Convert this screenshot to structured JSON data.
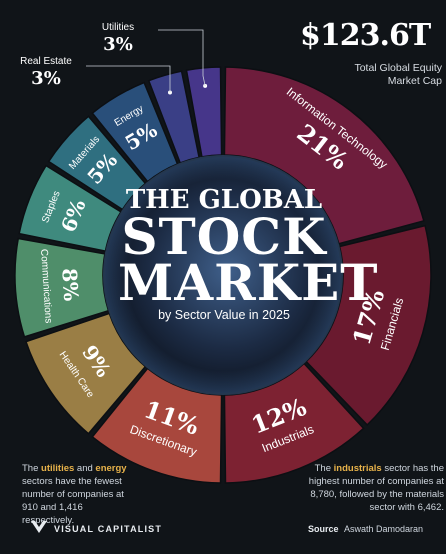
{
  "header": {
    "total_value": "$123.6T",
    "total_label": "Total Global Equity Market Cap"
  },
  "title": {
    "line1": "THE GLOBAL",
    "line2": "STOCK",
    "line3": "MARKET",
    "subtitle": "by Sector Value in 2025"
  },
  "notes": {
    "left_pre": "The ",
    "left_hl1": "utilities",
    "left_mid": " and ",
    "left_hl2": "energy",
    "left_post": " sectors have the fewest number of companies at 910 and 1,416 respectively.",
    "right_pre": "The ",
    "right_hl": "industrials",
    "right_post": " sector has the highest number of companies at 8,780, followed by the materials sector with 6,462."
  },
  "footer": {
    "brand": "VISUAL CAPITALIST",
    "source_label": "Source",
    "source_value": "Aswath Damodaran"
  },
  "colors": {
    "background": "#101418",
    "highlight": "#e7b24a"
  },
  "chart_data": {
    "type": "pie",
    "title": "THE GLOBAL STOCK MARKET by Sector Value in 2025",
    "categories": [
      "Information Technology",
      "Financials",
      "Industrials",
      "Discretionary",
      "Health Care",
      "Communications",
      "Staples",
      "Materials",
      "Energy",
      "Real Estate",
      "Utilities"
    ],
    "values": [
      21,
      17,
      12,
      11,
      9,
      8,
      6,
      5,
      5,
      3,
      3
    ],
    "labels": [
      "21%",
      "17%",
      "12%",
      "11%",
      "9%",
      "8%",
      "6%",
      "5%",
      "5%",
      "3%",
      "3%"
    ],
    "colors": [
      "#6e1d3c",
      "#6a1a2f",
      "#7d2232",
      "#a8473d",
      "#9a7e45",
      "#4f8e6a",
      "#3f8a7e",
      "#2f6f80",
      "#294f7a",
      "#3a3f86",
      "#46368a"
    ]
  }
}
